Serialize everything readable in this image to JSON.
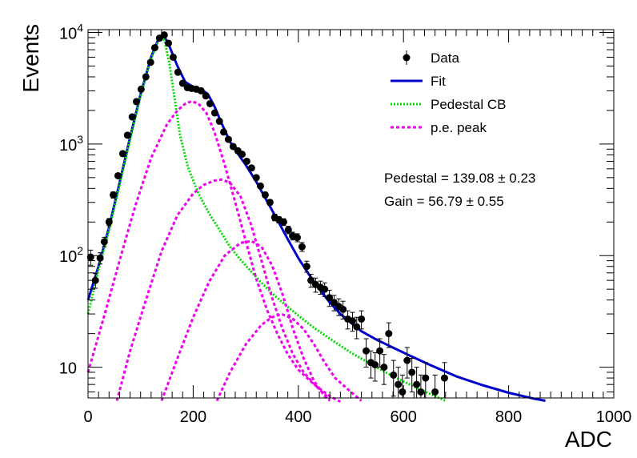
{
  "chart_data": {
    "type": "scatter",
    "xlabel": "ADC",
    "ylabel": "Events",
    "xlim": [
      0,
      1000
    ],
    "ylim": [
      5.3,
      10600
    ],
    "yscale": "log",
    "grid": false,
    "legend_position": "top-right",
    "x_ticks": [
      {
        "v": 0,
        "label": "0"
      },
      {
        "v": 200,
        "label": "200"
      },
      {
        "v": 400,
        "label": "400"
      },
      {
        "v": 600,
        "label": "600"
      },
      {
        "v": 800,
        "label": "800"
      },
      {
        "v": 1000,
        "label": "1000"
      }
    ],
    "y_ticks": [
      {
        "v": 10,
        "base": "10",
        "exp": ""
      },
      {
        "v": 100,
        "base": "10",
        "exp": "2"
      },
      {
        "v": 1000,
        "base": "10",
        "exp": "3"
      },
      {
        "v": 10000,
        "base": "10",
        "exp": "4"
      }
    ],
    "legend": [
      {
        "label": "Data",
        "style": "marker"
      },
      {
        "label": "Fit",
        "style": "line"
      },
      {
        "label": "Pedestal CB",
        "style": "dotted"
      },
      {
        "label": "p.e. peak",
        "style": "dashed"
      }
    ],
    "annotations": [
      {
        "text": "Pedestal = 139.08 ± 0.23"
      },
      {
        "text": "Gain = 56.79 ± 0.55"
      }
    ],
    "series": [
      {
        "name": "Data",
        "style": "marker",
        "color": "#000000",
        "points": [
          [
            5,
            97,
            15
          ],
          [
            14,
            60,
            9
          ],
          [
            23,
            95,
            11
          ],
          [
            31,
            133,
            13
          ],
          [
            40,
            200,
            15
          ],
          [
            48,
            350,
            22
          ],
          [
            57,
            520,
            25
          ],
          [
            66,
            820,
            30
          ],
          [
            75,
            1200,
            36
          ],
          [
            84,
            1750,
            44
          ],
          [
            92,
            2400,
            50
          ],
          [
            101,
            3100,
            56
          ],
          [
            110,
            4000,
            63
          ],
          [
            119,
            5400,
            74
          ],
          [
            127,
            7300,
            86
          ],
          [
            136,
            8900,
            95
          ],
          [
            145,
            9500,
            98
          ],
          [
            153,
            8000,
            90
          ],
          [
            162,
            6000,
            78
          ],
          [
            171,
            4400,
            66
          ],
          [
            180,
            3500,
            60
          ],
          [
            189,
            3200,
            57
          ],
          [
            197,
            3150,
            57
          ],
          [
            206,
            3100,
            56
          ],
          [
            215,
            3000,
            56
          ],
          [
            224,
            2700,
            52
          ],
          [
            232,
            2300,
            48
          ],
          [
            241,
            1900,
            44
          ],
          [
            250,
            1600,
            40
          ],
          [
            258,
            1280,
            36
          ],
          [
            267,
            1100,
            33
          ],
          [
            276,
            950,
            31
          ],
          [
            285,
            870,
            30
          ],
          [
            293,
            810,
            29
          ],
          [
            302,
            700,
            27
          ],
          [
            311,
            610,
            25
          ],
          [
            320,
            500,
            23
          ],
          [
            328,
            420,
            21
          ],
          [
            337,
            350,
            19
          ],
          [
            346,
            300,
            17
          ],
          [
            355,
            220,
            15
          ],
          [
            363,
            210,
            14
          ],
          [
            372,
            200,
            14
          ],
          [
            381,
            170,
            13
          ],
          [
            389,
            150,
            12
          ],
          [
            398,
            145,
            12
          ],
          [
            407,
            120,
            11
          ],
          [
            416,
            80,
            9
          ],
          [
            424,
            60,
            8
          ],
          [
            433,
            55,
            8
          ],
          [
            442,
            52,
            7
          ],
          [
            450,
            50,
            7
          ],
          [
            459,
            42,
            7
          ],
          [
            468,
            38,
            6
          ],
          [
            477,
            35,
            6
          ],
          [
            485,
            33,
            6
          ],
          [
            494,
            27,
            5
          ],
          [
            503,
            26,
            5
          ],
          [
            511,
            23,
            5
          ],
          [
            520,
            27,
            5
          ],
          [
            529,
            14,
            4
          ],
          [
            538,
            11,
            3
          ],
          [
            546,
            10.5,
            3
          ],
          [
            555,
            14,
            4
          ],
          [
            563,
            10,
            3
          ],
          [
            572,
            20,
            5
          ],
          [
            581,
            8.5,
            3
          ],
          [
            590,
            7,
            3
          ],
          [
            598,
            6,
            2.5
          ],
          [
            607,
            11.5,
            3.5
          ],
          [
            616,
            9,
            3
          ],
          [
            625,
            7,
            3
          ],
          [
            633,
            6,
            2.5
          ],
          [
            642,
            8,
            3
          ],
          [
            660,
            6,
            2.5
          ],
          [
            678,
            8,
            3
          ]
        ]
      },
      {
        "name": "Fit",
        "style": "line",
        "color": "#0000cc",
        "points": [
          [
            0,
            40
          ],
          [
            20,
            80
          ],
          [
            40,
            180
          ],
          [
            60,
            450
          ],
          [
            80,
            1150
          ],
          [
            100,
            2800
          ],
          [
            120,
            6000
          ],
          [
            135,
            9000
          ],
          [
            145,
            9200
          ],
          [
            155,
            7500
          ],
          [
            170,
            5000
          ],
          [
            185,
            3600
          ],
          [
            200,
            3250
          ],
          [
            215,
            3100
          ],
          [
            228,
            2800
          ],
          [
            240,
            2200
          ],
          [
            255,
            1500
          ],
          [
            270,
            1050
          ],
          [
            285,
            820
          ],
          [
            300,
            650
          ],
          [
            320,
            460
          ],
          [
            340,
            310
          ],
          [
            360,
            210
          ],
          [
            380,
            140
          ],
          [
            400,
            95
          ],
          [
            420,
            68
          ],
          [
            440,
            50
          ],
          [
            460,
            38
          ],
          [
            480,
            30
          ],
          [
            500,
            25
          ],
          [
            520,
            21
          ],
          [
            550,
            17.5
          ],
          [
            600,
            13.5
          ],
          [
            650,
            10.5
          ],
          [
            700,
            8.3
          ],
          [
            750,
            6.9
          ],
          [
            800,
            5.9
          ],
          [
            850,
            5.2
          ],
          [
            870,
            5.0
          ]
        ]
      },
      {
        "name": "Pedestal CB",
        "style": "dotted",
        "color": "#00dd00",
        "points": [
          [
            0,
            30
          ],
          [
            20,
            75
          ],
          [
            40,
            170
          ],
          [
            60,
            430
          ],
          [
            80,
            1100
          ],
          [
            100,
            2700
          ],
          [
            120,
            5800
          ],
          [
            135,
            8700
          ],
          [
            145,
            8600
          ],
          [
            155,
            5200
          ],
          [
            165,
            2500
          ],
          [
            175,
            1200
          ],
          [
            190,
            620
          ],
          [
            210,
            360
          ],
          [
            230,
            240
          ],
          [
            250,
            170
          ],
          [
            270,
            120
          ],
          [
            290,
            92
          ],
          [
            310,
            72
          ],
          [
            330,
            57
          ],
          [
            350,
            46
          ],
          [
            370,
            38
          ],
          [
            400,
            29
          ],
          [
            430,
            22.5
          ],
          [
            460,
            18
          ],
          [
            500,
            13.5
          ],
          [
            540,
            10.5
          ],
          [
            580,
            8.3
          ],
          [
            620,
            6.7
          ],
          [
            660,
            5.5
          ],
          [
            680,
            5.0
          ]
        ]
      },
      {
        "name": "p.e. peak 1",
        "style": "dashed",
        "color": "#ee00ee",
        "points": [
          [
            0,
            9
          ],
          [
            30,
            28
          ],
          [
            60,
            90
          ],
          [
            90,
            280
          ],
          [
            120,
            750
          ],
          [
            150,
            1500
          ],
          [
            170,
            2000
          ],
          [
            185,
            2300
          ],
          [
            197,
            2420
          ],
          [
            210,
            2300
          ],
          [
            225,
            1900
          ],
          [
            240,
            1300
          ],
          [
            260,
            650
          ],
          [
            280,
            300
          ],
          [
            300,
            135
          ],
          [
            320,
            62
          ],
          [
            340,
            33
          ],
          [
            360,
            20
          ],
          [
            380,
            13
          ],
          [
            400,
            9.5
          ],
          [
            430,
            7
          ],
          [
            460,
            5.5
          ],
          [
            480,
            4.9
          ]
        ]
      },
      {
        "name": "p.e. peak 2",
        "style": "dashed",
        "color": "#ee00ee",
        "points": [
          [
            55,
            5
          ],
          [
            80,
            14
          ],
          [
            110,
            40
          ],
          [
            140,
            110
          ],
          [
            170,
            230
          ],
          [
            200,
            360
          ],
          [
            220,
            430
          ],
          [
            240,
            470
          ],
          [
            254,
            480
          ],
          [
            270,
            450
          ],
          [
            290,
            340
          ],
          [
            310,
            190
          ],
          [
            330,
            90
          ],
          [
            350,
            42
          ],
          [
            370,
            22
          ],
          [
            390,
            13
          ],
          [
            410,
            9
          ],
          [
            440,
            6.3
          ],
          [
            460,
            5.2
          ]
        ]
      },
      {
        "name": "p.e. peak 3",
        "style": "dashed",
        "color": "#ee00ee",
        "points": [
          [
            140,
            5
          ],
          [
            170,
            12
          ],
          [
            200,
            28
          ],
          [
            230,
            58
          ],
          [
            260,
            100
          ],
          [
            290,
            130
          ],
          [
            311,
            135
          ],
          [
            330,
            120
          ],
          [
            350,
            82
          ],
          [
            370,
            45
          ],
          [
            390,
            22
          ],
          [
            410,
            12
          ],
          [
            430,
            7.5
          ],
          [
            450,
            5.5
          ],
          [
            460,
            5
          ]
        ]
      },
      {
        "name": "p.e. peak 4",
        "style": "dashed",
        "color": "#ee00ee",
        "points": [
          [
            245,
            5
          ],
          [
            270,
            9
          ],
          [
            300,
            16
          ],
          [
            330,
            24
          ],
          [
            350,
            28
          ],
          [
            368,
            30
          ],
          [
            390,
            27
          ],
          [
            410,
            22
          ],
          [
            430,
            16
          ],
          [
            450,
            11
          ],
          [
            470,
            8
          ],
          [
            500,
            6
          ],
          [
            520,
            5
          ]
        ]
      }
    ]
  }
}
